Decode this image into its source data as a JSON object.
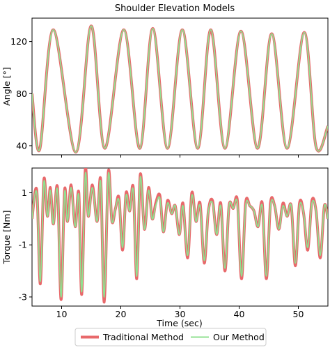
{
  "chart_data": {
    "title": "Shoulder Elevation Models",
    "type": "line",
    "legend": {
      "placement": "bottom-center",
      "entries": [
        {
          "name": "Traditional Method",
          "color": "#e8696b"
        },
        {
          "name": "Our Method",
          "color": "#90e090"
        }
      ]
    },
    "xlabel": "Time (sec)",
    "xlim": [
      5,
      55
    ],
    "xticks": [
      10,
      20,
      30,
      40,
      50
    ],
    "panels": [
      {
        "ylabel": "Angle [°]",
        "ylim": [
          33,
          138
        ],
        "yticks": [
          40,
          80,
          120
        ],
        "traditional": {
          "x": [
            5.0,
            6.3,
            8.6,
            12.4,
            15.0,
            17.3,
            20.5,
            23.2,
            25.4,
            27.9,
            30.4,
            33.0,
            35.2,
            37.6,
            40.3,
            43.1,
            45.5,
            48.1,
            51.0,
            53.0,
            55.0
          ],
          "y": [
            80,
            37,
            129,
            35,
            132,
            38,
            129,
            38,
            130,
            38,
            129,
            38,
            129,
            38,
            128,
            38,
            126,
            38,
            127,
            39,
            55
          ]
        },
        "ours": {
          "x": [
            5.0,
            6.3,
            8.6,
            12.4,
            15.0,
            17.3,
            20.5,
            23.2,
            25.4,
            27.9,
            30.4,
            33.0,
            35.2,
            37.6,
            40.3,
            43.1,
            45.5,
            48.1,
            51.0,
            53.0,
            55.0
          ],
          "y": [
            80,
            37,
            129,
            35,
            132,
            38,
            129,
            38,
            130,
            38,
            129,
            38,
            129,
            38,
            128,
            38,
            126,
            38,
            127,
            39,
            55
          ]
        }
      },
      {
        "ylabel": "Torque [Nm]",
        "ylim": [
          -3.35,
          1.95
        ],
        "yticks": [
          -3,
          -1,
          1
        ],
        "traditional": {
          "x": [
            5.0,
            5.8,
            6.4,
            7.0,
            7.6,
            8.1,
            8.6,
            9.3,
            9.9,
            10.5,
            11.0,
            11.6,
            12.3,
            12.9,
            13.4,
            14.0,
            14.5,
            15.2,
            16.0,
            16.6,
            17.2,
            17.9,
            18.5,
            19.1,
            19.7,
            20.3,
            20.9,
            21.5,
            22.1,
            22.7,
            23.3,
            24.0,
            24.7,
            25.3,
            25.9,
            26.6,
            27.2,
            27.9,
            28.6,
            29.2,
            29.9,
            30.5,
            31.3,
            32.0,
            32.7,
            33.4,
            34.1,
            34.8,
            35.5,
            36.2,
            36.9,
            37.6,
            38.3,
            39.0,
            39.7,
            40.4,
            41.1,
            41.8,
            42.5,
            43.2,
            43.9,
            44.6,
            45.3,
            46.0,
            46.7,
            47.4,
            48.1,
            48.8,
            49.5,
            50.2,
            50.9,
            51.6,
            52.3,
            53.0,
            53.7,
            54.4,
            55.0
          ],
          "y": [
            0.0,
            1.1,
            -2.5,
            1.5,
            0.1,
            1.2,
            -0.2,
            1.2,
            -3.1,
            1.1,
            -0.1,
            1.3,
            -0.3,
            1.0,
            -2.9,
            1.9,
            0.1,
            1.3,
            -0.1,
            1.5,
            -3.2,
            1.8,
            -0.1,
            0.4,
            0.8,
            -1.2,
            1.0,
            0.3,
            1.2,
            -2.3,
            1.7,
            -0.4,
            1.2,
            0.0,
            0.6,
            0.9,
            -0.5,
            0.7,
            0.2,
            0.5,
            -0.6,
            0.6,
            -1.5,
            1.0,
            -0.1,
            0.6,
            -1.7,
            0.3,
            0.7,
            -0.6,
            0.6,
            -2.0,
            0.5,
            0.4,
            0.7,
            -2.3,
            0.6,
            0.5,
            0.3,
            -0.3,
            0.6,
            -2.3,
            0.6,
            0.5,
            -0.4,
            0.6,
            0.1,
            0.5,
            -1.8,
            0.6,
            0.2,
            -1.2,
            0.7,
            0.3,
            -1.5,
            0.5,
            0.0
          ]
        },
        "ours": {
          "x": [
            5.0,
            5.8,
            6.4,
            7.0,
            7.6,
            8.1,
            8.6,
            9.3,
            9.9,
            10.5,
            11.0,
            11.6,
            12.3,
            12.9,
            13.4,
            14.0,
            14.5,
            15.2,
            16.0,
            16.6,
            17.2,
            17.9,
            18.5,
            19.1,
            19.7,
            20.3,
            20.9,
            21.5,
            22.1,
            22.7,
            23.3,
            24.0,
            24.7,
            25.3,
            25.9,
            26.6,
            27.2,
            27.9,
            28.6,
            29.2,
            29.9,
            30.5,
            31.3,
            32.0,
            32.7,
            33.4,
            34.1,
            34.8,
            35.5,
            36.2,
            36.9,
            37.6,
            38.3,
            39.0,
            39.7,
            40.4,
            41.1,
            41.8,
            42.5,
            43.2,
            43.9,
            44.6,
            45.3,
            46.0,
            46.7,
            47.4,
            48.1,
            48.8,
            49.5,
            50.2,
            50.9,
            51.6,
            52.3,
            53.0,
            53.7,
            54.4,
            55.0
          ],
          "y": [
            0.0,
            1.0,
            -2.4,
            1.4,
            0.1,
            1.1,
            -0.2,
            1.1,
            -3.0,
            1.0,
            -0.1,
            1.2,
            -0.3,
            0.9,
            -2.8,
            1.7,
            0.1,
            1.2,
            -0.1,
            1.4,
            -3.0,
            1.7,
            -0.1,
            0.4,
            0.7,
            -1.1,
            0.9,
            0.3,
            1.1,
            -2.2,
            1.6,
            -0.4,
            1.1,
            0.0,
            0.5,
            0.8,
            -0.5,
            0.6,
            0.2,
            0.5,
            -0.6,
            0.5,
            -1.4,
            0.9,
            -0.1,
            0.5,
            -1.6,
            0.3,
            0.6,
            -0.6,
            0.5,
            -1.9,
            0.5,
            0.4,
            0.6,
            -2.2,
            0.5,
            0.5,
            0.3,
            -0.3,
            0.5,
            -2.2,
            0.5,
            0.5,
            -0.4,
            0.5,
            0.1,
            0.5,
            -1.7,
            0.5,
            0.2,
            -1.1,
            0.6,
            0.3,
            -1.4,
            0.5,
            0.0
          ]
        }
      }
    ]
  }
}
